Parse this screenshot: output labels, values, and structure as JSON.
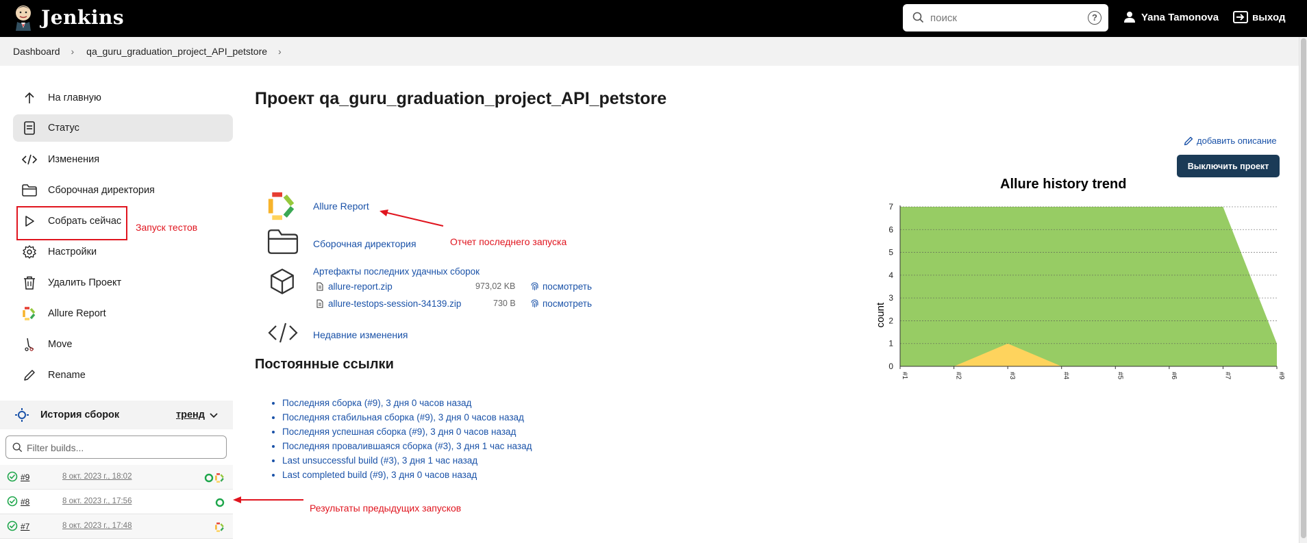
{
  "header": {
    "app_name": "Jenkins",
    "search_placeholder": "поиск",
    "help_label": "?",
    "user_name": "Yana Tamonova",
    "logout_label": "выход"
  },
  "breadcrumb": {
    "items": [
      "Dashboard",
      "qa_guru_graduation_project_API_petstore"
    ]
  },
  "sidebar": {
    "items": [
      {
        "label": "На главную",
        "icon": "arrow-up-icon"
      },
      {
        "label": "Статус",
        "icon": "document-icon",
        "active": true
      },
      {
        "label": "Изменения",
        "icon": "code-icon"
      },
      {
        "label": "Сборочная директория",
        "icon": "folder-icon"
      },
      {
        "label": "Собрать сейчас",
        "icon": "play-icon"
      },
      {
        "label": "Настройки",
        "icon": "gear-icon"
      },
      {
        "label": "Удалить Проект",
        "icon": "trash-icon"
      },
      {
        "label": "Allure Report",
        "icon": "allure-icon"
      },
      {
        "label": "Move",
        "icon": "move-icon"
      },
      {
        "label": "Rename",
        "icon": "pencil-icon"
      }
    ],
    "annotation_build": "Запуск тестов"
  },
  "history": {
    "title": "История сборок",
    "trend_label": "тренд",
    "filter_placeholder": "Filter builds...",
    "builds": [
      {
        "number": "#9",
        "date": "8 окт. 2023 г., 18:02"
      },
      {
        "number": "#8",
        "date": "8 окт. 2023 г., 17:56"
      },
      {
        "number": "#7",
        "date": "8 окт. 2023 г., 17:48"
      }
    ],
    "annotation": "Результаты предыдущих запусков"
  },
  "main": {
    "title": "Проект qa_guru_graduation_project_API_petstore",
    "add_description": "добавить описание",
    "disable_button": "Выключить проект",
    "allure_link": "Allure Report",
    "annotation_report": "Отчет последнего запуска",
    "workspace_link": "Сборочная директория",
    "artifacts_title": "Артефакты последних удачных сборок",
    "artifacts": [
      {
        "name": "allure-report.zip",
        "size": "973,02 KB",
        "view": "посмотреть"
      },
      {
        "name": "allure-testops-session-34139.zip",
        "size": "730 B",
        "view": "посмотреть"
      }
    ],
    "recent_changes_link": "Недавние изменения",
    "permalinks_title": "Постоянные ссылки",
    "permalinks": [
      "Последняя сборка (#9), 3 дня 0 часов назад",
      "Последняя стабильная сборка (#9), 3 дня 0 часов назад",
      "Последняя успешная сборка (#9), 3 дня 0 часов назад",
      "Последняя провалившаяся сборка (#3), 3 дня 1 час назад",
      "Last unsuccessful build (#3), 3 дня 1 час назад",
      "Last completed build (#9), 3 дня 0 часов назад"
    ]
  },
  "colors": {
    "header_bg": "#000000",
    "link": "#1a52a8",
    "button_bg": "#1b3b57",
    "passed": "#97cc64",
    "broken": "#fed35d",
    "annotation_red": "#e0141e"
  },
  "chart_data": {
    "type": "area",
    "title": "Allure history trend",
    "ylabel": "count",
    "xlabel": "",
    "x": [
      "#1",
      "#2",
      "#3",
      "#4",
      "#5",
      "#6",
      "#7",
      "#9"
    ],
    "ylim": [
      0,
      7
    ],
    "yticks": [
      0,
      1,
      2,
      3,
      4,
      5,
      6,
      7
    ],
    "series": [
      {
        "color": "#97cc64",
        "values": [
          7,
          7,
          7,
          7,
          7,
          7,
          7,
          1
        ]
      },
      {
        "color": "#fed35d",
        "values": [
          0,
          0,
          1,
          0,
          0,
          0,
          0,
          0
        ]
      }
    ],
    "grid": true
  }
}
